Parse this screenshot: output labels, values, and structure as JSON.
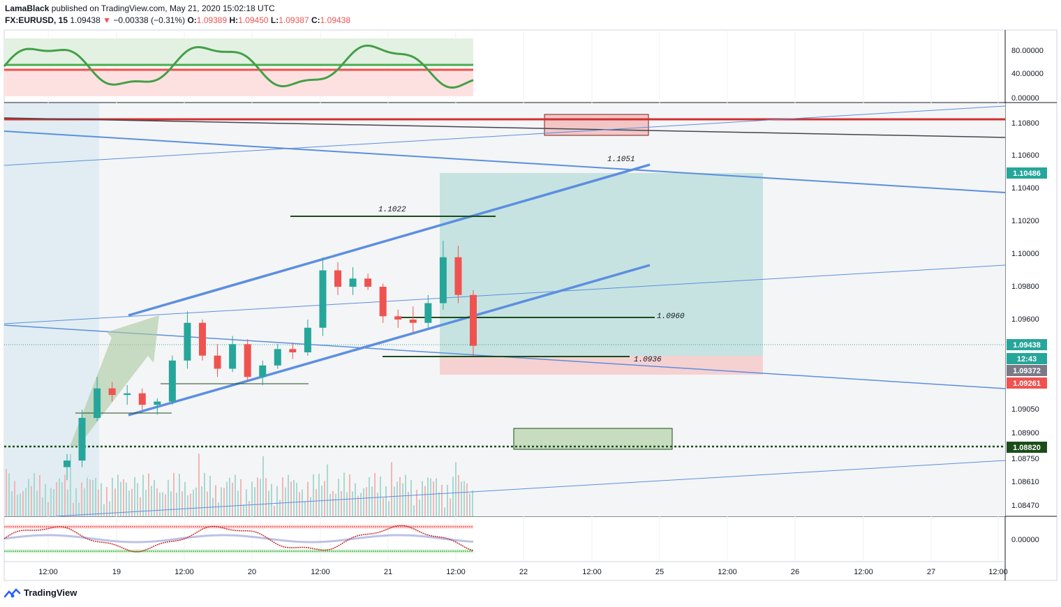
{
  "header": {
    "author": "LamaBlack",
    "published_text": "published on TradingView.com, May 21, 2020 15:02:18 UTC",
    "symbol": "FX:EURUSD, 15",
    "last": "1.09438",
    "change_arrow": "▼",
    "change": "−0.00338 (−0.31%)",
    "o_label": "O:",
    "o_value": "1.09389",
    "h_label": "H:",
    "h_value": "1.09450",
    "l_label": "L:",
    "l_value": "1.09387",
    "c_label": "C:",
    "c_value": "1.09438"
  },
  "footer": {
    "brand": "TradingView"
  },
  "chart_data": {
    "type": "candlestick",
    "symbol": "FX:EURUSD",
    "interval": "15",
    "y_ticks": [
      "1.10800",
      "1.10600",
      "1.10400",
      "1.10200",
      "1.10000",
      "1.09800",
      "1.09600",
      "1.09050",
      "1.08900",
      "1.08750",
      "1.08610",
      "1.08470"
    ],
    "y_range": [
      1.084,
      1.109
    ],
    "x_ticks": [
      "12:00",
      "19",
      "12:00",
      "20",
      "12:00",
      "21",
      "12:00",
      "22",
      "12:00",
      "25",
      "12:00",
      "26",
      "12:00",
      "27",
      "12:00"
    ],
    "price_labels": [
      {
        "value": "1.10486",
        "color": "#26a69a"
      },
      {
        "value": "1.09438",
        "color": "#26a69a"
      },
      {
        "value": "12:43",
        "color": "#26a69a"
      },
      {
        "value": "1.09372",
        "color": "#787b86"
      },
      {
        "value": "1.09261",
        "color": "#ef5350"
      },
      {
        "value": "1.08820",
        "color": "#1b4d1b"
      }
    ],
    "annotations": [
      "1.1051",
      "1.1022",
      "1.0960",
      "1.0936"
    ],
    "osc_top": {
      "ticks": [
        "80.00000",
        "40.00000",
        "0.00000"
      ]
    },
    "osc_bottom": {
      "ticks": [
        "0.00000"
      ]
    },
    "price_series": [
      {
        "t": 0,
        "o": 1.087,
        "h": 1.0878,
        "l": 1.0862,
        "c": 1.0874
      },
      {
        "t": 1,
        "o": 1.0874,
        "h": 1.0905,
        "l": 1.087,
        "c": 1.09
      },
      {
        "t": 2,
        "o": 1.09,
        "h": 1.0925,
        "l": 1.0898,
        "c": 1.0918
      },
      {
        "t": 3,
        "o": 1.0918,
        "h": 1.0922,
        "l": 1.091,
        "c": 1.0914
      },
      {
        "t": 4,
        "o": 1.0914,
        "h": 1.092,
        "l": 1.0908,
        "c": 1.0915
      },
      {
        "t": 5,
        "o": 1.0915,
        "h": 1.0918,
        "l": 1.0905,
        "c": 1.0908
      },
      {
        "t": 6,
        "o": 1.0908,
        "h": 1.0912,
        "l": 1.0902,
        "c": 1.091
      },
      {
        "t": 7,
        "o": 1.091,
        "h": 1.0938,
        "l": 1.0908,
        "c": 1.0935
      },
      {
        "t": 8,
        "o": 1.0935,
        "h": 1.0965,
        "l": 1.093,
        "c": 1.0958
      },
      {
        "t": 9,
        "o": 1.0958,
        "h": 1.096,
        "l": 1.0935,
        "c": 1.0938
      },
      {
        "t": 10,
        "o": 1.0938,
        "h": 1.0945,
        "l": 1.0925,
        "c": 1.093
      },
      {
        "t": 11,
        "o": 1.093,
        "h": 1.095,
        "l": 1.0928,
        "c": 1.0945
      },
      {
        "t": 12,
        "o": 1.0945,
        "h": 1.0948,
        "l": 1.0922,
        "c": 1.0925
      },
      {
        "t": 13,
        "o": 1.0925,
        "h": 1.0935,
        "l": 1.092,
        "c": 1.0932
      },
      {
        "t": 14,
        "o": 1.0932,
        "h": 1.0945,
        "l": 1.093,
        "c": 1.0942
      },
      {
        "t": 15,
        "o": 1.0942,
        "h": 1.0946,
        "l": 1.0936,
        "c": 1.094
      },
      {
        "t": 16,
        "o": 1.094,
        "h": 1.096,
        "l": 1.0938,
        "c": 1.0955
      },
      {
        "t": 17,
        "o": 1.0955,
        "h": 1.0998,
        "l": 1.095,
        "c": 1.099
      },
      {
        "t": 18,
        "o": 1.099,
        "h": 1.0995,
        "l": 1.0975,
        "c": 1.098
      },
      {
        "t": 19,
        "o": 1.098,
        "h": 1.0992,
        "l": 1.0975,
        "c": 1.0985
      },
      {
        "t": 20,
        "o": 1.0985,
        "h": 1.0988,
        "l": 1.0978,
        "c": 1.098
      },
      {
        "t": 21,
        "o": 1.098,
        "h": 1.0982,
        "l": 1.0958,
        "c": 1.0962
      },
      {
        "t": 22,
        "o": 1.0962,
        "h": 1.0966,
        "l": 1.0955,
        "c": 1.096
      },
      {
        "t": 23,
        "o": 1.096,
        "h": 1.0968,
        "l": 1.0952,
        "c": 1.0958
      },
      {
        "t": 24,
        "o": 1.0958,
        "h": 1.0975,
        "l": 1.0955,
        "c": 1.097
      },
      {
        "t": 25,
        "o": 1.097,
        "h": 1.1008,
        "l": 1.0966,
        "c": 1.0998
      },
      {
        "t": 26,
        "o": 1.0998,
        "h": 1.1005,
        "l": 1.097,
        "c": 1.0975
      },
      {
        "t": 27,
        "o": 1.0975,
        "h": 1.0978,
        "l": 1.0938,
        "c": 1.0944
      }
    ]
  }
}
